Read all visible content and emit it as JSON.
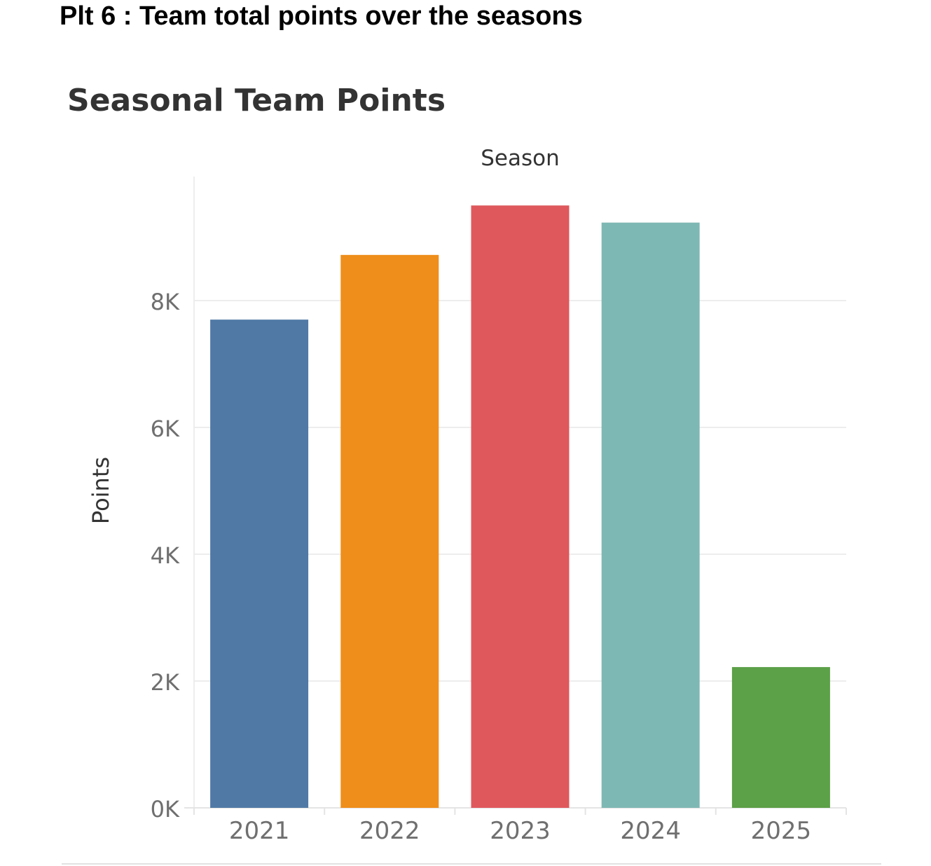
{
  "page": {
    "caption": "Plt 6 : Team total points over the seasons"
  },
  "chart_data": {
    "type": "bar",
    "title": "Seasonal Team Points",
    "xlabel": "Season",
    "ylabel": "Points",
    "categories": [
      "2021",
      "2022",
      "2023",
      "2024",
      "2025"
    ],
    "values": [
      7700,
      8720,
      9500,
      9230,
      2220
    ],
    "colors": [
      "#5079a5",
      "#ef8e1b",
      "#df585c",
      "#7eb8b4",
      "#5ca047"
    ],
    "ylim": [
      0,
      10000
    ],
    "yticks": [
      0,
      2000,
      4000,
      6000,
      8000
    ],
    "ytick_labels": [
      "0K",
      "2K",
      "4K",
      "6K",
      "8K"
    ],
    "grid": true,
    "xlabel_position": "top"
  }
}
